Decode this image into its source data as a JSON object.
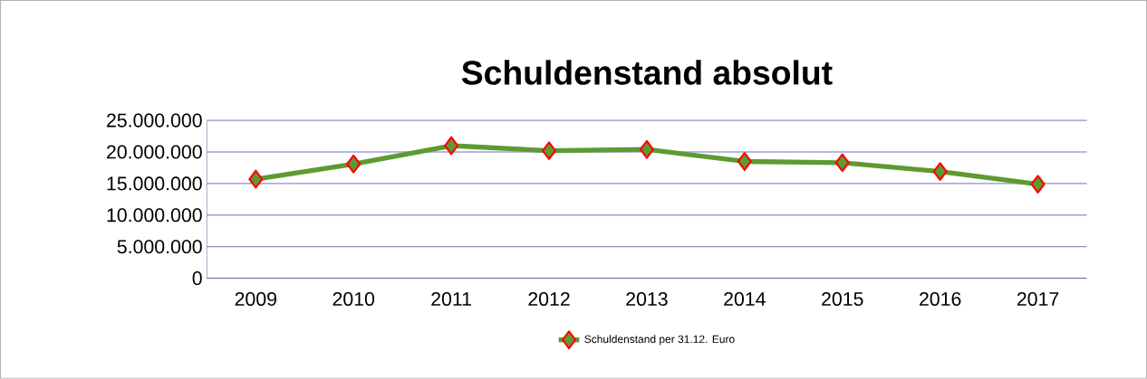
{
  "chart_data": {
    "type": "line",
    "title": "Schuldenstand absolut",
    "categories": [
      "2009",
      "2010",
      "2011",
      "2012",
      "2013",
      "2014",
      "2015",
      "2016",
      "2017"
    ],
    "series": [
      {
        "name": "Schuldenstand per 31.12. Euro",
        "color": "#5e9a32",
        "values": [
          15700000,
          18100000,
          21000000,
          20200000,
          20400000,
          18500000,
          18300000,
          16900000,
          14900000
        ]
      }
    ],
    "ylim": [
      0,
      25000000
    ],
    "yticks": [
      {
        "value": 0,
        "label": "0"
      },
      {
        "value": 5000000,
        "label": "5.000.000"
      },
      {
        "value": 10000000,
        "label": "10.000.000"
      },
      {
        "value": 15000000,
        "label": "15.000.000"
      },
      {
        "value": 20000000,
        "label": "20.000.000"
      },
      {
        "value": 25000000,
        "label": "25.000.000"
      }
    ],
    "grid": "y",
    "legend": "bottom",
    "marker": "diamond",
    "line_style": "solid"
  }
}
